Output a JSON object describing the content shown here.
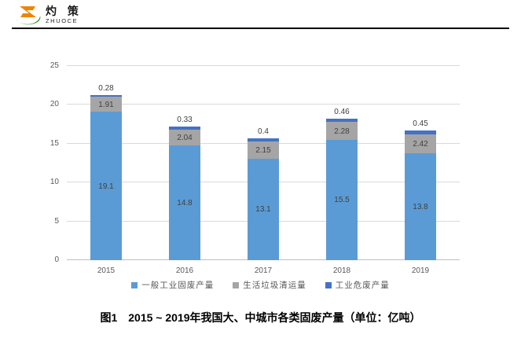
{
  "brand": {
    "name_cn": "灼 策",
    "name_en": "ZHUOCE"
  },
  "caption": "图1　2015 ~ 2019年我国大、中城市各类固废产量（单位：亿吨）",
  "chart_data": {
    "type": "bar",
    "stacked": true,
    "categories": [
      "2015",
      "2016",
      "2017",
      "2018",
      "2019"
    ],
    "series": [
      {
        "name": "一般工业固废产量",
        "color": "#5B9BD5",
        "values": [
          19.1,
          14.8,
          13.1,
          15.5,
          13.8
        ]
      },
      {
        "name": "生活垃圾清运量",
        "color": "#A5A5A5",
        "values": [
          1.91,
          2.04,
          2.15,
          2.28,
          2.42
        ]
      },
      {
        "name": "工业危废产量",
        "color": "#4472C4",
        "values": [
          0.28,
          0.33,
          0.4,
          0.46,
          0.45
        ]
      }
    ],
    "totals": [
      21.29,
      17.17,
      15.65,
      18.24,
      16.67
    ],
    "ylim": [
      0,
      25
    ],
    "yticks": [
      0,
      5,
      10,
      15,
      20,
      25
    ],
    "grid": true,
    "legend_position": "bottom",
    "label_color": "#404040",
    "grid_color": "#D9D9D9"
  }
}
